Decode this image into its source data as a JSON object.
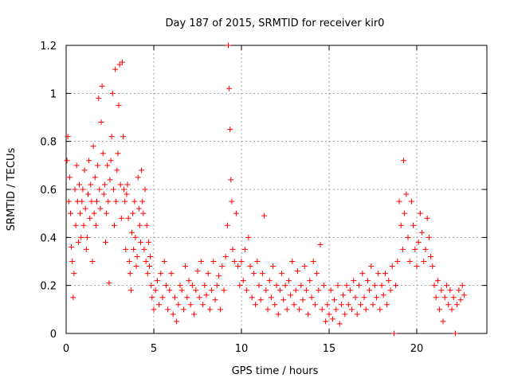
{
  "chart_data": {
    "type": "scatter",
    "title": "Day 187 of 2015, SRMTID for receiver kir0",
    "xlabel": "GPS time / hours",
    "ylabel": "SRMTID / TECUs",
    "xlim": [
      0,
      24
    ],
    "ylim": [
      0,
      1.2
    ],
    "xticks": [
      0,
      5,
      10,
      15,
      20
    ],
    "xtick_labels": [
      "0",
      "5",
      "10",
      "15",
      "20"
    ],
    "yticks": [
      0,
      0.2,
      0.4,
      0.6,
      0.8,
      1,
      1.2
    ],
    "ytick_labels": [
      "0",
      "0.2",
      "0.4",
      "0.6",
      "0.8",
      "1",
      "1.2"
    ],
    "grid": true,
    "marker": "+",
    "color": "#ff0000",
    "series": [
      {
        "name": "kir0",
        "points": [
          [
            0.05,
            0.72
          ],
          [
            0.1,
            0.82
          ],
          [
            0.15,
            0.55
          ],
          [
            0.2,
            0.65
          ],
          [
            0.25,
            0.5
          ],
          [
            0.3,
            0.36
          ],
          [
            0.35,
            0.3
          ],
          [
            0.4,
            0.15
          ],
          [
            0.45,
            0.25
          ],
          [
            0.5,
            0.6
          ],
          [
            0.55,
            0.45
          ],
          [
            0.6,
            0.7
          ],
          [
            0.65,
            0.55
          ],
          [
            0.7,
            0.38
          ],
          [
            0.75,
            0.62
          ],
          [
            0.8,
            0.5
          ],
          [
            0.85,
            0.4
          ],
          [
            0.9,
            0.55
          ],
          [
            0.95,
            0.6
          ],
          [
            1.0,
            0.45
          ],
          [
            1.05,
            0.68
          ],
          [
            1.1,
            0.52
          ],
          [
            1.15,
            0.35
          ],
          [
            1.2,
            0.4
          ],
          [
            1.25,
            0.58
          ],
          [
            1.3,
            0.72
          ],
          [
            1.35,
            0.48
          ],
          [
            1.4,
            0.62
          ],
          [
            1.45,
            0.55
          ],
          [
            1.5,
            0.3
          ],
          [
            1.55,
            0.78
          ],
          [
            1.6,
            0.5
          ],
          [
            1.65,
            0.65
          ],
          [
            1.7,
            0.45
          ],
          [
            1.75,
            0.55
          ],
          [
            1.8,
            0.7
          ],
          [
            1.85,
            0.98
          ],
          [
            1.9,
            0.6
          ],
          [
            1.95,
            0.52
          ],
          [
            2.0,
            0.88
          ],
          [
            2.05,
            1.03
          ],
          [
            2.1,
            0.75
          ],
          [
            2.15,
            0.58
          ],
          [
            2.2,
            0.62
          ],
          [
            2.25,
            0.38
          ],
          [
            2.3,
            0.5
          ],
          [
            2.35,
            0.7
          ],
          [
            2.4,
            0.55
          ],
          [
            2.45,
            0.21
          ],
          [
            2.5,
            0.64
          ],
          [
            2.55,
            0.72
          ],
          [
            2.6,
            0.82
          ],
          [
            2.65,
            1.0
          ],
          [
            2.7,
            0.6
          ],
          [
            2.75,
            0.45
          ],
          [
            2.8,
            1.1
          ],
          [
            2.85,
            0.55
          ],
          [
            2.9,
            0.68
          ],
          [
            2.95,
            0.75
          ],
          [
            3.0,
            0.95
          ],
          [
            3.05,
            1.12
          ],
          [
            3.1,
            0.62
          ],
          [
            3.15,
            0.48
          ],
          [
            3.2,
            1.13
          ],
          [
            3.25,
            0.82
          ],
          [
            3.3,
            0.6
          ],
          [
            3.35,
            0.55
          ],
          [
            3.4,
            0.35
          ],
          [
            3.45,
            0.58
          ],
          [
            3.5,
            0.62
          ],
          [
            3.55,
            0.48
          ],
          [
            3.6,
            0.3
          ],
          [
            3.65,
            0.25
          ],
          [
            3.7,
            0.18
          ],
          [
            3.75,
            0.42
          ],
          [
            3.8,
            0.5
          ],
          [
            3.85,
            0.35
          ],
          [
            3.9,
            0.55
          ],
          [
            3.95,
            0.4
          ],
          [
            4.0,
            0.28
          ],
          [
            4.05,
            0.32
          ],
          [
            4.1,
            0.65
          ],
          [
            4.15,
            0.52
          ],
          [
            4.2,
            0.45
          ],
          [
            4.25,
            0.38
          ],
          [
            4.3,
            0.68
          ],
          [
            4.35,
            0.55
          ],
          [
            4.4,
            0.5
          ],
          [
            4.45,
            0.35
          ],
          [
            4.5,
            0.6
          ],
          [
            4.55,
            0.3
          ],
          [
            4.6,
            0.45
          ],
          [
            4.65,
            0.25
          ],
          [
            4.7,
            0.38
          ],
          [
            4.75,
            0.28
          ],
          [
            4.8,
            0.32
          ],
          [
            4.85,
            0.2
          ],
          [
            4.9,
            0.15
          ],
          [
            5.0,
            0.1
          ],
          [
            5.1,
            0.18
          ],
          [
            5.2,
            0.22
          ],
          [
            5.3,
            0.12
          ],
          [
            5.4,
            0.25
          ],
          [
            5.5,
            0.15
          ],
          [
            5.6,
            0.3
          ],
          [
            5.7,
            0.2
          ],
          [
            5.8,
            0.1
          ],
          [
            5.9,
            0.18
          ],
          [
            6.0,
            0.25
          ],
          [
            6.1,
            0.08
          ],
          [
            6.2,
            0.15
          ],
          [
            6.3,
            0.05
          ],
          [
            6.4,
            0.12
          ],
          [
            6.5,
            0.2
          ],
          [
            6.6,
            0.18
          ],
          [
            6.7,
            0.1
          ],
          [
            6.8,
            0.28
          ],
          [
            6.9,
            0.15
          ],
          [
            7.0,
            0.22
          ],
          [
            7.1,
            0.12
          ],
          [
            7.2,
            0.2
          ],
          [
            7.3,
            0.08
          ],
          [
            7.4,
            0.18
          ],
          [
            7.5,
            0.26
          ],
          [
            7.6,
            0.15
          ],
          [
            7.7,
            0.3
          ],
          [
            7.8,
            0.12
          ],
          [
            7.9,
            0.2
          ],
          [
            8.0,
            0.16
          ],
          [
            8.1,
            0.25
          ],
          [
            8.2,
            0.1
          ],
          [
            8.3,
            0.18
          ],
          [
            8.4,
            0.3
          ],
          [
            8.5,
            0.14
          ],
          [
            8.6,
            0.2
          ],
          [
            8.7,
            0.24
          ],
          [
            8.8,
            0.1
          ],
          [
            8.9,
            0.28
          ],
          [
            9.0,
            0.18
          ],
          [
            9.1,
            0.32
          ],
          [
            9.2,
            0.45
          ],
          [
            9.25,
            1.2
          ],
          [
            9.3,
            1.02
          ],
          [
            9.35,
            0.85
          ],
          [
            9.4,
            0.64
          ],
          [
            9.45,
            0.55
          ],
          [
            9.5,
            0.35
          ],
          [
            9.6,
            0.3
          ],
          [
            9.7,
            0.5
          ],
          [
            9.8,
            0.28
          ],
          [
            9.9,
            0.2
          ],
          [
            10.0,
            0.3
          ],
          [
            10.1,
            0.22
          ],
          [
            10.2,
            0.35
          ],
          [
            10.3,
            0.18
          ],
          [
            10.4,
            0.4
          ],
          [
            10.5,
            0.28
          ],
          [
            10.6,
            0.15
          ],
          [
            10.7,
            0.25
          ],
          [
            10.8,
            0.12
          ],
          [
            10.9,
            0.3
          ],
          [
            11.0,
            0.2
          ],
          [
            11.1,
            0.14
          ],
          [
            11.2,
            0.25
          ],
          [
            11.3,
            0.49
          ],
          [
            11.4,
            0.18
          ],
          [
            11.5,
            0.1
          ],
          [
            11.6,
            0.22
          ],
          [
            11.7,
            0.15
          ],
          [
            11.8,
            0.28
          ],
          [
            11.9,
            0.12
          ],
          [
            12.0,
            0.2
          ],
          [
            12.1,
            0.08
          ],
          [
            12.2,
            0.18
          ],
          [
            12.3,
            0.25
          ],
          [
            12.4,
            0.14
          ],
          [
            12.5,
            0.2
          ],
          [
            12.6,
            0.1
          ],
          [
            12.7,
            0.22
          ],
          [
            12.8,
            0.16
          ],
          [
            12.9,
            0.3
          ],
          [
            13.0,
            0.12
          ],
          [
            13.1,
            0.18
          ],
          [
            13.2,
            0.26
          ],
          [
            13.3,
            0.1
          ],
          [
            13.4,
            0.2
          ],
          [
            13.5,
            0.14
          ],
          [
            13.6,
            0.28
          ],
          [
            13.7,
            0.18
          ],
          [
            13.8,
            0.08
          ],
          [
            13.9,
            0.22
          ],
          [
            14.0,
            0.15
          ],
          [
            14.1,
            0.3
          ],
          [
            14.2,
            0.12
          ],
          [
            14.3,
            0.25
          ],
          [
            14.4,
            0.18
          ],
          [
            14.5,
            0.37
          ],
          [
            14.6,
            0.1
          ],
          [
            14.7,
            0.2
          ],
          [
            14.8,
            0.05
          ],
          [
            14.9,
            0.12
          ],
          [
            15.0,
            0.08
          ],
          [
            15.1,
            0.18
          ],
          [
            15.2,
            0.06
          ],
          [
            15.3,
            0.14
          ],
          [
            15.4,
            0.1
          ],
          [
            15.5,
            0.2
          ],
          [
            15.6,
            0.04
          ],
          [
            15.7,
            0.12
          ],
          [
            15.8,
            0.16
          ],
          [
            15.9,
            0.08
          ],
          [
            16.0,
            0.2
          ],
          [
            16.1,
            0.12
          ],
          [
            16.2,
            0.18
          ],
          [
            16.3,
            0.1
          ],
          [
            16.4,
            0.22
          ],
          [
            16.5,
            0.15
          ],
          [
            16.6,
            0.08
          ],
          [
            16.7,
            0.2
          ],
          [
            16.8,
            0.12
          ],
          [
            16.9,
            0.25
          ],
          [
            17.0,
            0.15
          ],
          [
            17.1,
            0.1
          ],
          [
            17.2,
            0.22
          ],
          [
            17.3,
            0.18
          ],
          [
            17.4,
            0.28
          ],
          [
            17.5,
            0.12
          ],
          [
            17.6,
            0.2
          ],
          [
            17.7,
            0.15
          ],
          [
            17.8,
            0.25
          ],
          [
            17.9,
            0.1
          ],
          [
            18.0,
            0.2
          ],
          [
            18.1,
            0.16
          ],
          [
            18.2,
            0.25
          ],
          [
            18.3,
            0.12
          ],
          [
            18.4,
            0.22
          ],
          [
            18.5,
            0.18
          ],
          [
            18.6,
            0.28
          ],
          [
            18.7,
            0.0
          ],
          [
            18.8,
            0.2
          ],
          [
            18.9,
            0.3
          ],
          [
            19.0,
            0.55
          ],
          [
            19.1,
            0.45
          ],
          [
            19.2,
            0.35
          ],
          [
            19.25,
            0.72
          ],
          [
            19.3,
            0.5
          ],
          [
            19.4,
            0.58
          ],
          [
            19.5,
            0.4
          ],
          [
            19.6,
            0.3
          ],
          [
            19.7,
            0.55
          ],
          [
            19.8,
            0.45
          ],
          [
            19.9,
            0.35
          ],
          [
            20.0,
            0.28
          ],
          [
            20.1,
            0.38
          ],
          [
            20.2,
            0.5
          ],
          [
            20.3,
            0.42
          ],
          [
            20.4,
            0.3
          ],
          [
            20.5,
            0.35
          ],
          [
            20.6,
            0.48
          ],
          [
            20.7,
            0.4
          ],
          [
            20.8,
            0.32
          ],
          [
            20.9,
            0.28
          ],
          [
            21.0,
            0.2
          ],
          [
            21.1,
            0.15
          ],
          [
            21.2,
            0.22
          ],
          [
            21.3,
            0.1
          ],
          [
            21.4,
            0.18
          ],
          [
            21.5,
            0.05
          ],
          [
            21.6,
            0.15
          ],
          [
            21.7,
            0.2
          ],
          [
            21.8,
            0.12
          ],
          [
            21.9,
            0.18
          ],
          [
            22.0,
            0.1
          ],
          [
            22.1,
            0.15
          ],
          [
            22.2,
            0.0
          ],
          [
            22.3,
            0.12
          ],
          [
            22.4,
            0.18
          ],
          [
            22.5,
            0.14
          ],
          [
            22.6,
            0.2
          ],
          [
            22.7,
            0.16
          ]
        ]
      }
    ]
  }
}
